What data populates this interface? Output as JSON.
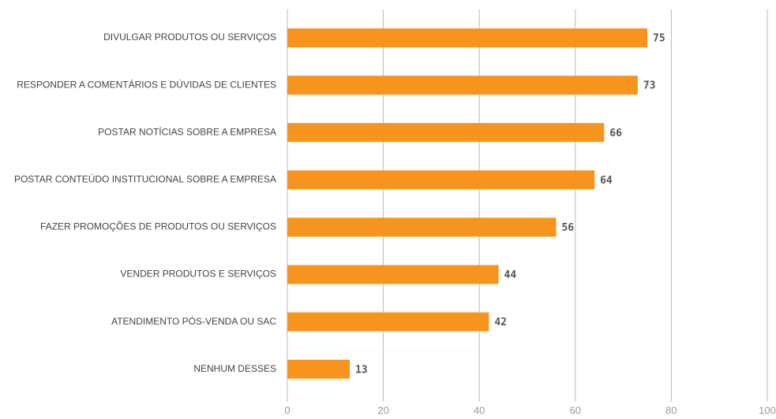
{
  "chart_data": {
    "type": "bar",
    "orientation": "horizontal",
    "categories": [
      "DIVULGAR PRODUTOS OU SERVIÇOS",
      "RESPONDER A COMENTÁRIOS E DÚVIDAS DE CLIENTES",
      "POSTAR NOTÍCIAS SOBRE A EMPRESA",
      "POSTAR CONTEÚDO INSTITUCIONAL SOBRE A EMPRESA",
      "FAZER PROMOÇÕES DE PRODUTOS OU SERVIÇOS",
      "VENDER PRODUTOS E SERVIÇOS",
      "ATENDIMENTO PÓS-VENDA OU SAC",
      "NENHUM DESSES"
    ],
    "values": [
      75,
      73,
      66,
      64,
      56,
      44,
      42,
      13
    ],
    "color": "#f7941d",
    "xlim": [
      0,
      100
    ],
    "xticks": [
      0,
      20,
      40,
      60,
      80,
      100
    ],
    "grid": true
  }
}
